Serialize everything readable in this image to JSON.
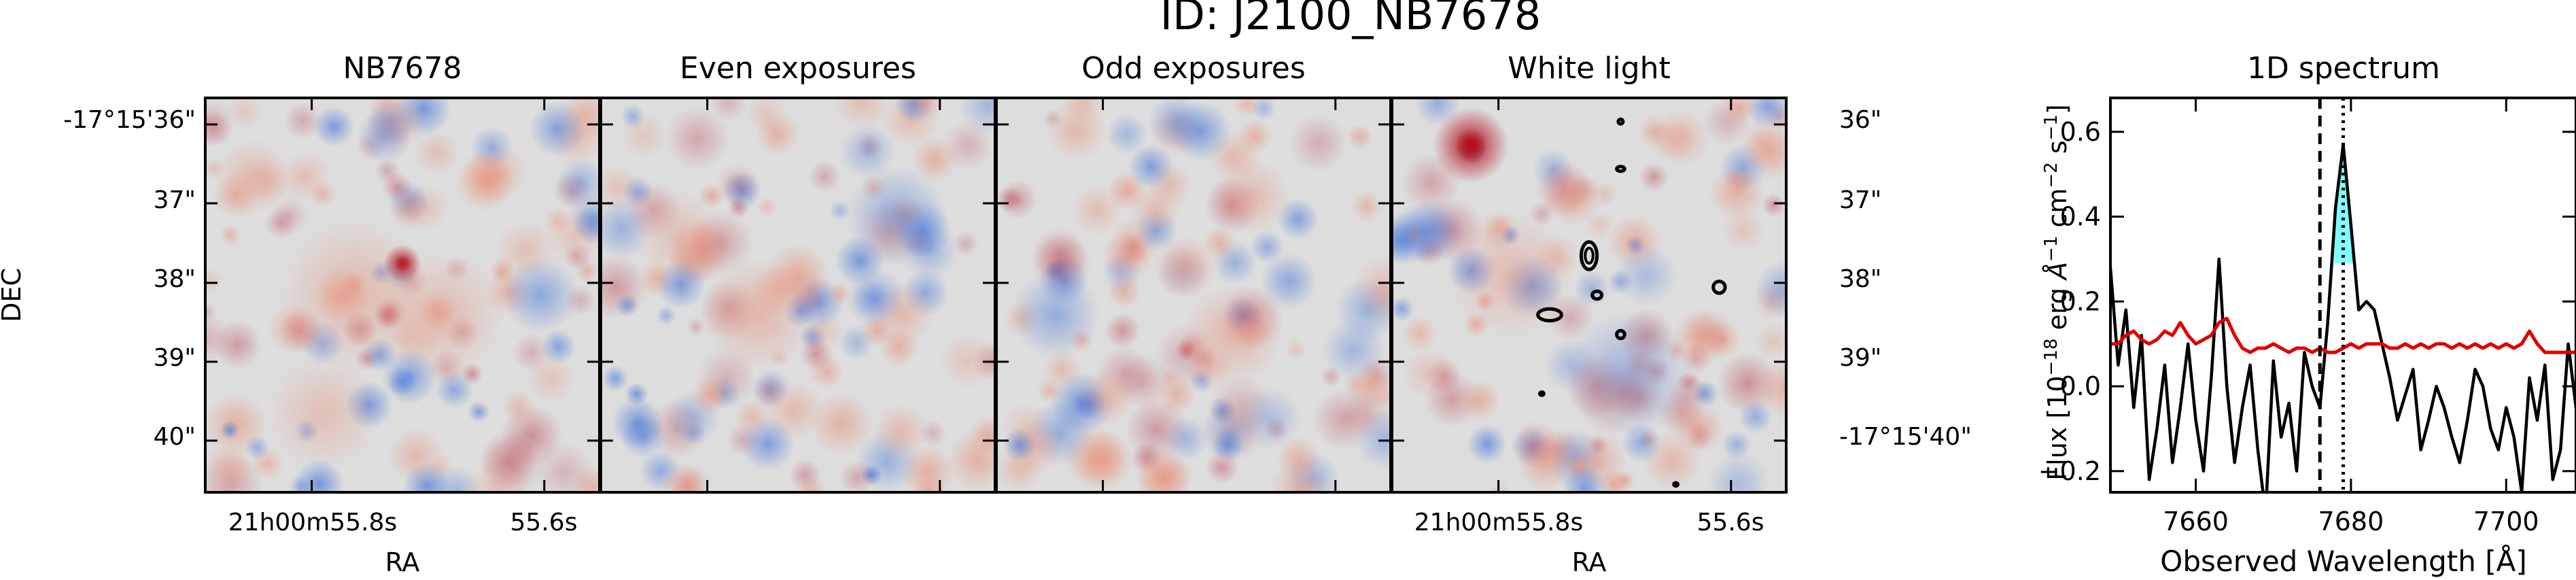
{
  "figure": {
    "title": "ID: J2100_NB7678"
  },
  "colors": {
    "colormap_low": "#3b6fd9",
    "colormap_mid": "#dddddd",
    "colormap_high": "#b20f1e",
    "contour": "#000000",
    "data_line": "#000000",
    "error_line": "#e00000",
    "line_fill": "#7fffff"
  },
  "chart_data": [
    {
      "type": "heatmap",
      "title": "NB7678",
      "xlabel": "RA",
      "ylabel": "DEC",
      "x_tick_labels": [
        "21h00m55.8s",
        "55.6s"
      ],
      "y_tick_labels": [
        "-17°15'36\"",
        "37\"",
        "38\"",
        "39\"",
        "40\""
      ],
      "blobs": [
        {
          "u": 0.5,
          "v": 0.42,
          "amp": 0.85,
          "s": 0.03
        },
        {
          "u": 0.38,
          "v": 0.5,
          "amp": 0.35,
          "s": 0.12
        },
        {
          "u": 0.6,
          "v": 0.55,
          "amp": 0.3,
          "s": 0.1
        },
        {
          "u": 0.3,
          "v": 0.8,
          "amp": 0.25,
          "s": 0.09
        },
        {
          "u": 0.85,
          "v": 0.5,
          "amp": -0.35,
          "s": 0.06
        },
        {
          "u": 0.12,
          "v": 0.2,
          "amp": 0.3,
          "s": 0.06
        }
      ]
    },
    {
      "type": "heatmap",
      "title": "Even exposures",
      "blobs": [
        {
          "u": 0.5,
          "v": 0.45,
          "amp": 0.5,
          "s": 0.05
        },
        {
          "u": 0.4,
          "v": 0.55,
          "amp": 0.35,
          "s": 0.09
        },
        {
          "u": 0.75,
          "v": 0.3,
          "amp": -0.3,
          "s": 0.08
        },
        {
          "u": 0.2,
          "v": 0.35,
          "amp": 0.25,
          "s": 0.07
        }
      ]
    },
    {
      "type": "heatmap",
      "title": "Odd exposures",
      "blobs": [
        {
          "u": 0.48,
          "v": 0.43,
          "amp": 0.45,
          "s": 0.05
        },
        {
          "u": 0.6,
          "v": 0.6,
          "amp": 0.35,
          "s": 0.08
        },
        {
          "u": 0.15,
          "v": 0.55,
          "amp": -0.3,
          "s": 0.07
        },
        {
          "u": 0.65,
          "v": 0.25,
          "amp": 0.3,
          "s": 0.06
        }
      ]
    },
    {
      "type": "heatmap",
      "title": "White light",
      "xlabel": "RA",
      "x_tick_labels": [
        "21h00m55.8s",
        "55.6s"
      ],
      "y_tick_labels": [
        "36\"",
        "37\"",
        "38\"",
        "39\"",
        "-17°15'40\""
      ],
      "blobs": [
        {
          "u": 0.2,
          "v": 0.12,
          "amp": 0.95,
          "s": 0.06
        },
        {
          "u": 0.3,
          "v": 0.45,
          "amp": 0.3,
          "s": 0.1
        },
        {
          "u": 0.6,
          "v": 0.7,
          "amp": -0.25,
          "s": 0.1
        }
      ],
      "contours": [
        {
          "u": 0.5,
          "v": 0.4,
          "ru": 0.02,
          "rv": 0.035
        },
        {
          "u": 0.4,
          "v": 0.55,
          "ru": 0.03,
          "rv": 0.015
        },
        {
          "u": 0.52,
          "v": 0.5,
          "ru": 0.012,
          "rv": 0.01
        },
        {
          "u": 0.58,
          "v": 0.6,
          "ru": 0.01,
          "rv": 0.01
        },
        {
          "u": 0.83,
          "v": 0.48,
          "ru": 0.015,
          "rv": 0.015
        },
        {
          "u": 0.58,
          "v": 0.06,
          "ru": 0.006,
          "rv": 0.006
        },
        {
          "u": 0.58,
          "v": 0.18,
          "ru": 0.01,
          "rv": 0.006
        },
        {
          "u": 0.38,
          "v": 0.75,
          "ru": 0.005,
          "rv": 0.004
        },
        {
          "u": 0.72,
          "v": 0.98,
          "ru": 0.005,
          "rv": 0.004
        }
      ]
    },
    {
      "type": "line",
      "title": "1D spectrum",
      "xlabel": "Observed Wavelength [Å]",
      "ylabel": "Flux [10^-18 erg Å^-1 cm^-2 s^-1]",
      "xlim": [
        7649,
        7709
      ],
      "ylim": [
        -0.25,
        0.68
      ],
      "x_ticks": [
        7660,
        7680,
        7700
      ],
      "x_tick_labels": [
        "7660",
        "7680",
        "7700"
      ],
      "y_ticks": [
        -0.2,
        0.0,
        0.2,
        0.4,
        0.6
      ],
      "y_tick_labels": [
        "−0.2",
        "0.0",
        "0.2",
        "0.4",
        "0.6"
      ],
      "vlines": [
        {
          "x": 7676,
          "style": "dashed"
        },
        {
          "x": 7679,
          "style": "dotted"
        }
      ],
      "fill_range": [
        7677.8,
        7680.2
      ],
      "fill_base": 0.29,
      "series": [
        {
          "role": "flux",
          "color": "#000000",
          "x": [
            7649,
            7650,
            7651,
            7652,
            7653,
            7654,
            7655,
            7656,
            7657,
            7658,
            7659,
            7660,
            7661,
            7662,
            7663,
            7664,
            7665,
            7666,
            7667,
            7668,
            7669,
            7670,
            7671,
            7672,
            7673,
            7674,
            7675,
            7676,
            7677,
            7678,
            7679,
            7680,
            7681,
            7682,
            7683,
            7684,
            7685,
            7686,
            7687,
            7688,
            7689,
            7690,
            7691,
            7692,
            7693,
            7694,
            7695,
            7696,
            7697,
            7698,
            7699,
            7700,
            7701,
            7702,
            7703,
            7704,
            7705,
            7706,
            7707,
            7708,
            7709
          ],
          "y": [
            0.28,
            0.05,
            0.18,
            -0.05,
            0.12,
            -0.22,
            -0.1,
            0.05,
            -0.18,
            -0.05,
            0.1,
            -0.08,
            -0.2,
            0.02,
            0.3,
            0.0,
            -0.18,
            -0.05,
            0.05,
            -0.15,
            -0.3,
            0.06,
            -0.12,
            -0.04,
            -0.2,
            0.08,
            0.0,
            -0.05,
            0.15,
            0.42,
            0.57,
            0.38,
            0.18,
            0.2,
            0.18,
            0.1,
            0.02,
            -0.08,
            -0.02,
            0.04,
            -0.15,
            -0.08,
            0.0,
            -0.05,
            -0.12,
            -0.18,
            -0.08,
            0.04,
            0.0,
            -0.1,
            -0.15,
            -0.05,
            -0.12,
            -0.25,
            0.02,
            -0.08,
            0.05,
            -0.22,
            -0.15,
            0.1,
            -0.05
          ]
        },
        {
          "role": "noise",
          "color": "#e00000",
          "x": [
            7649,
            7650,
            7651,
            7652,
            7653,
            7654,
            7655,
            7656,
            7657,
            7658,
            7659,
            7660,
            7661,
            7662,
            7663,
            7664,
            7665,
            7666,
            7667,
            7668,
            7669,
            7670,
            7671,
            7672,
            7673,
            7674,
            7675,
            7676,
            7677,
            7678,
            7679,
            7680,
            7681,
            7682,
            7683,
            7684,
            7685,
            7686,
            7687,
            7688,
            7689,
            7690,
            7691,
            7692,
            7693,
            7694,
            7695,
            7696,
            7697,
            7698,
            7699,
            7700,
            7701,
            7702,
            7703,
            7704,
            7705,
            7706,
            7707,
            7708,
            7709
          ],
          "y": [
            0.1,
            0.1,
            0.12,
            0.13,
            0.11,
            0.1,
            0.11,
            0.13,
            0.12,
            0.15,
            0.12,
            0.1,
            0.11,
            0.12,
            0.15,
            0.16,
            0.12,
            0.09,
            0.08,
            0.09,
            0.09,
            0.1,
            0.09,
            0.08,
            0.09,
            0.09,
            0.08,
            0.09,
            0.08,
            0.08,
            0.09,
            0.1,
            0.09,
            0.1,
            0.1,
            0.1,
            0.09,
            0.09,
            0.1,
            0.09,
            0.1,
            0.09,
            0.1,
            0.1,
            0.09,
            0.1,
            0.09,
            0.1,
            0.09,
            0.1,
            0.09,
            0.1,
            0.09,
            0.1,
            0.13,
            0.1,
            0.08,
            0.08,
            0.08,
            0.08,
            0.08
          ]
        }
      ]
    }
  ]
}
